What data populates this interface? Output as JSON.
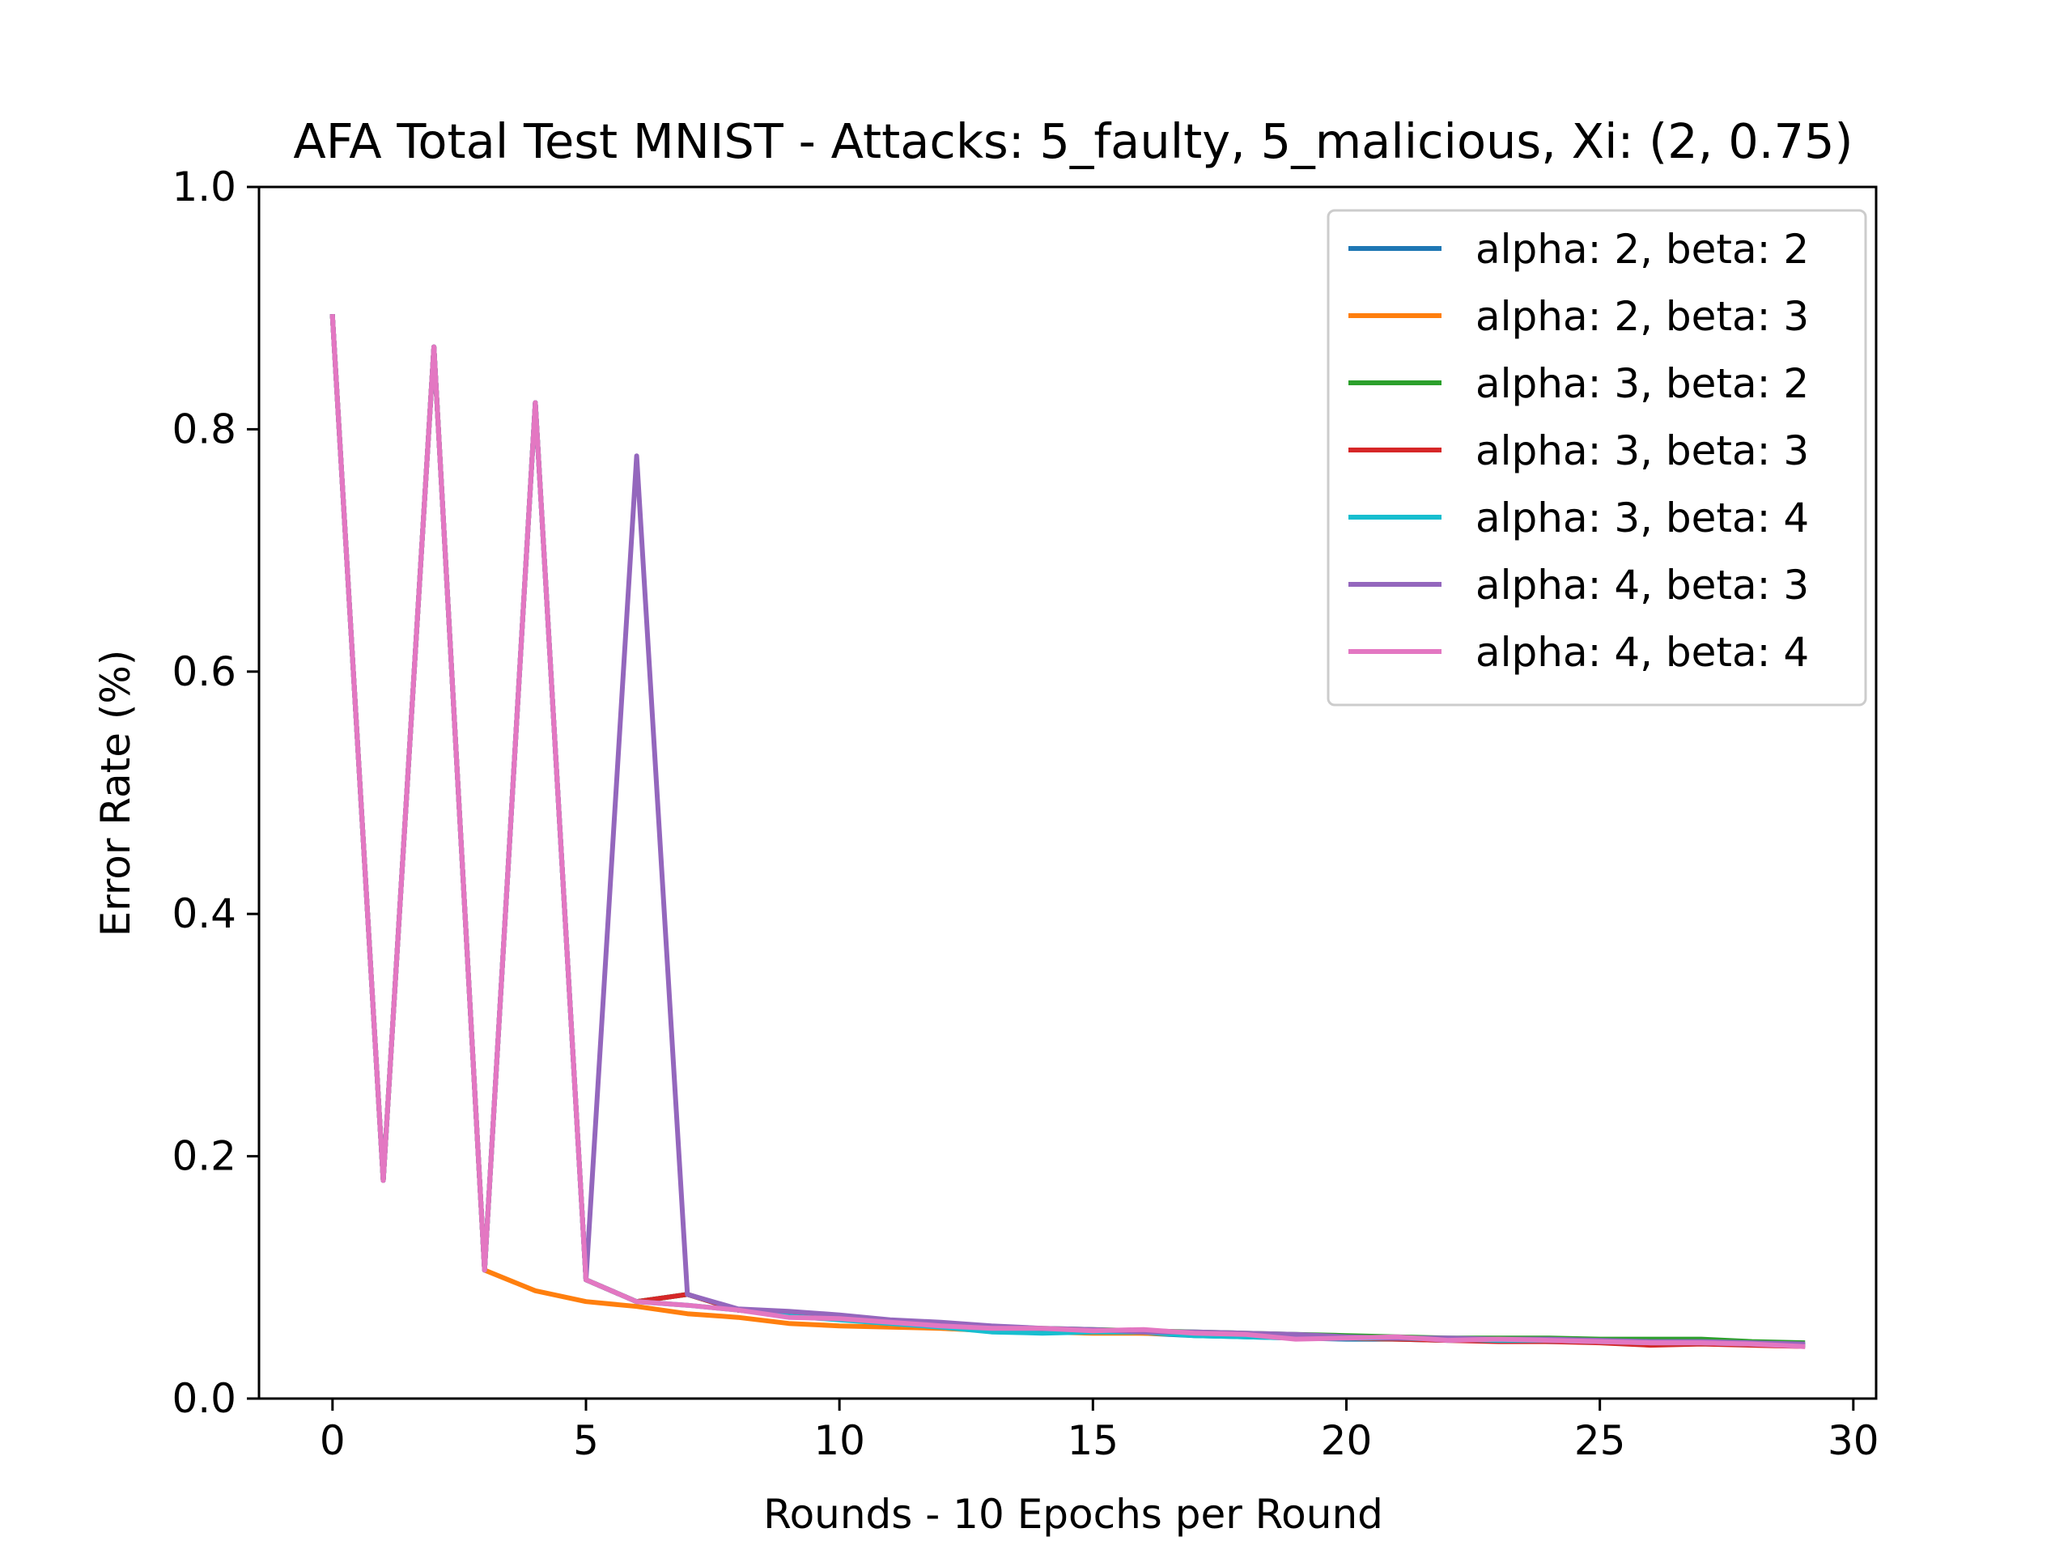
{
  "chart_data": {
    "type": "line",
    "title": "AFA Total Test MNIST - Attacks: 5_faulty, 5_malicious, Xi: (2, 0.75)",
    "xlabel": "Rounds - 10 Epochs per Round",
    "ylabel": "Error Rate (%)",
    "xlim": [
      -1.45,
      30.45
    ],
    "ylim": [
      0.0,
      1.0
    ],
    "xticks": [
      0,
      5,
      10,
      15,
      20,
      25,
      30
    ],
    "yticks": [
      0.0,
      0.2,
      0.4,
      0.6,
      0.8,
      1.0
    ],
    "xtick_labels": [
      "0",
      "5",
      "10",
      "15",
      "20",
      "25",
      "30"
    ],
    "ytick_labels": [
      "0.0",
      "0.2",
      "0.4",
      "0.6",
      "0.8",
      "1.0"
    ],
    "grid": false,
    "legend_position": "top-right",
    "x": [
      0,
      1,
      2,
      3,
      4,
      5,
      6,
      7,
      8,
      9,
      10,
      11,
      12,
      13,
      14,
      15,
      16,
      17,
      18,
      19,
      20,
      21,
      22,
      23,
      24,
      25,
      26,
      27,
      28,
      29
    ],
    "series": [
      {
        "name": "alpha: 2, beta: 2",
        "color": "#1f77b4",
        "values": [
          0.893,
          0.18,
          0.868,
          0.106,
          0.822,
          0.098,
          0.08,
          0.086,
          0.073,
          0.07,
          0.066,
          0.062,
          0.06,
          0.057,
          0.056,
          0.055,
          0.054,
          0.052,
          0.051,
          0.05,
          0.049,
          0.049,
          0.048,
          0.048,
          0.047,
          0.047,
          0.046,
          0.046,
          0.045,
          0.044
        ]
      },
      {
        "name": "alpha: 2, beta: 3",
        "color": "#ff7f0e",
        "values": [
          0.893,
          0.18,
          0.868,
          0.106,
          0.089,
          0.08,
          0.076,
          0.07,
          0.067,
          0.062,
          0.06,
          0.059,
          0.058,
          0.056,
          0.055,
          0.054,
          0.054,
          0.053,
          0.052,
          0.051,
          0.05,
          0.049,
          0.049,
          0.048,
          0.048,
          0.047,
          0.046,
          0.046,
          0.045,
          0.044
        ]
      },
      {
        "name": "alpha: 3, beta: 2",
        "color": "#2ca02c",
        "values": [
          0.893,
          0.18,
          0.868,
          0.106,
          0.822,
          0.098,
          0.08,
          0.086,
          0.073,
          0.071,
          0.067,
          0.064,
          0.062,
          0.059,
          0.058,
          0.057,
          0.056,
          0.055,
          0.054,
          0.053,
          0.052,
          0.051,
          0.05,
          0.05,
          0.05,
          0.049,
          0.049,
          0.049,
          0.047,
          0.046
        ]
      },
      {
        "name": "alpha: 3, beta: 3",
        "color": "#d62728",
        "values": [
          0.893,
          0.18,
          0.868,
          0.106,
          0.822,
          0.098,
          0.08,
          0.086,
          0.073,
          0.07,
          0.066,
          0.063,
          0.061,
          0.058,
          0.057,
          0.056,
          0.055,
          0.054,
          0.053,
          0.051,
          0.05,
          0.049,
          0.048,
          0.047,
          0.047,
          0.046,
          0.044,
          0.045,
          0.044,
          0.043
        ]
      },
      {
        "name": "alpha: 3, beta: 4",
        "color": "#17becf",
        "values": [
          0.893,
          0.18,
          0.868,
          0.106,
          0.822,
          0.098,
          0.08,
          0.077,
          0.073,
          0.068,
          0.065,
          0.062,
          0.059,
          0.055,
          0.054,
          0.055,
          0.055,
          0.052,
          0.051,
          0.05,
          0.05,
          0.05,
          0.049,
          0.048,
          0.048,
          0.047,
          0.046,
          0.046,
          0.045,
          0.044
        ]
      },
      {
        "name": "alpha: 4, beta: 3",
        "color": "#9467bd",
        "values": [
          0.893,
          0.18,
          0.868,
          0.106,
          0.822,
          0.098,
          0.778,
          0.086,
          0.074,
          0.072,
          0.069,
          0.065,
          0.063,
          0.06,
          0.058,
          0.057,
          0.055,
          0.055,
          0.054,
          0.053,
          0.051,
          0.05,
          0.05,
          0.049,
          0.049,
          0.048,
          0.047,
          0.047,
          0.046,
          0.045
        ]
      },
      {
        "name": "alpha: 4, beta: 4",
        "color": "#e377c2",
        "values": [
          0.893,
          0.18,
          0.868,
          0.106,
          0.822,
          0.098,
          0.08,
          0.077,
          0.073,
          0.067,
          0.066,
          0.063,
          0.06,
          0.058,
          0.058,
          0.056,
          0.057,
          0.054,
          0.053,
          0.049,
          0.05,
          0.051,
          0.048,
          0.049,
          0.048,
          0.047,
          0.046,
          0.046,
          0.045,
          0.043
        ]
      }
    ]
  }
}
